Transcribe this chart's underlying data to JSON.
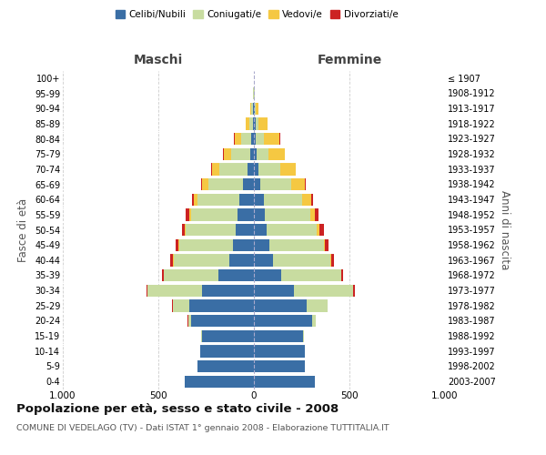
{
  "age_groups": [
    "0-4",
    "5-9",
    "10-14",
    "15-19",
    "20-24",
    "25-29",
    "30-34",
    "35-39",
    "40-44",
    "45-49",
    "50-54",
    "55-59",
    "60-64",
    "65-69",
    "70-74",
    "75-79",
    "80-84",
    "85-89",
    "90-94",
    "95-99",
    "100+"
  ],
  "birth_years": [
    "2003-2007",
    "1998-2002",
    "1993-1997",
    "1988-1992",
    "1983-1987",
    "1978-1982",
    "1973-1977",
    "1968-1972",
    "1963-1967",
    "1958-1962",
    "1953-1957",
    "1948-1952",
    "1943-1947",
    "1938-1942",
    "1933-1937",
    "1928-1932",
    "1923-1927",
    "1918-1922",
    "1913-1917",
    "1908-1912",
    "≤ 1907"
  ],
  "colors": {
    "celibe": "#3A6EA5",
    "coniugato": "#C8DCA0",
    "vedovo": "#F5C842",
    "divorziato": "#CC2222"
  },
  "maschi": {
    "celibe": [
      360,
      295,
      280,
      270,
      330,
      340,
      270,
      185,
      130,
      110,
      95,
      85,
      75,
      55,
      35,
      18,
      12,
      6,
      4,
      2,
      2
    ],
    "coniugato": [
      0,
      0,
      0,
      5,
      15,
      85,
      285,
      285,
      290,
      280,
      260,
      245,
      220,
      185,
      145,
      100,
      55,
      20,
      8,
      2,
      0
    ],
    "vedovo": [
      0,
      0,
      0,
      0,
      0,
      1,
      1,
      1,
      2,
      3,
      5,
      10,
      20,
      30,
      40,
      40,
      35,
      15,
      5,
      1,
      0
    ],
    "divorziato": [
      0,
      0,
      0,
      0,
      1,
      2,
      8,
      12,
      18,
      18,
      18,
      15,
      8,
      5,
      3,
      2,
      1,
      0,
      0,
      0,
      0
    ]
  },
  "femmine": {
    "nubile": [
      320,
      265,
      265,
      255,
      305,
      275,
      210,
      145,
      100,
      80,
      65,
      55,
      50,
      35,
      22,
      12,
      10,
      8,
      5,
      2,
      2
    ],
    "coniugata": [
      0,
      0,
      0,
      5,
      20,
      110,
      310,
      310,
      300,
      285,
      265,
      240,
      200,
      160,
      115,
      65,
      40,
      15,
      6,
      2,
      0
    ],
    "vedova": [
      0,
      0,
      0,
      0,
      0,
      1,
      1,
      2,
      3,
      5,
      15,
      25,
      50,
      70,
      80,
      85,
      85,
      50,
      12,
      3,
      0
    ],
    "divorziata": [
      0,
      0,
      0,
      0,
      1,
      2,
      8,
      12,
      18,
      20,
      20,
      18,
      10,
      7,
      4,
      2,
      1,
      0,
      0,
      0,
      0
    ]
  },
  "xlim": 1000,
  "title": "Popolazione per età, sesso e stato civile - 2008",
  "subtitle": "COMUNE DI VEDELAGO (TV) - Dati ISTAT 1° gennaio 2008 - Elaborazione TUTTITALIA.IT",
  "ylabel_left": "Fasce di età",
  "ylabel_right": "Anni di nascita",
  "xlabel_left": "Maschi",
  "xlabel_right": "Femmine"
}
